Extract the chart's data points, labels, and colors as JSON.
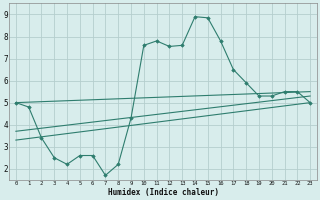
{
  "line1_x": [
    0,
    1,
    2,
    3,
    4,
    5,
    6,
    7,
    8,
    9,
    10,
    11,
    12,
    13,
    14,
    15,
    16,
    17,
    18,
    19,
    20,
    21,
    22,
    23
  ],
  "line1_y": [
    5.0,
    4.8,
    3.4,
    2.5,
    2.2,
    2.6,
    2.6,
    1.7,
    2.2,
    4.3,
    7.6,
    7.8,
    7.55,
    7.6,
    8.9,
    8.85,
    7.8,
    6.5,
    5.9,
    5.3,
    5.3,
    5.5,
    5.5,
    5.0
  ],
  "line2_x": [
    0,
    23
  ],
  "line2_y": [
    5.0,
    5.5
  ],
  "line3_x": [
    0,
    23
  ],
  "line3_y": [
    3.3,
    5.0
  ],
  "line4_x": [
    0,
    23
  ],
  "line4_y": [
    3.7,
    5.3
  ],
  "color": "#2e7d6e",
  "bg_color": "#d8edec",
  "grid_color": "#b5cece",
  "xlabel": "Humidex (Indice chaleur)",
  "yticks": [
    2,
    3,
    4,
    5,
    6,
    7,
    8,
    9
  ],
  "xlim": [
    -0.5,
    23.5
  ],
  "ylim": [
    1.5,
    9.5
  ],
  "xticks": [
    0,
    1,
    2,
    3,
    4,
    5,
    6,
    7,
    8,
    9,
    10,
    11,
    12,
    13,
    14,
    15,
    16,
    17,
    18,
    19,
    20,
    21,
    22,
    23
  ]
}
